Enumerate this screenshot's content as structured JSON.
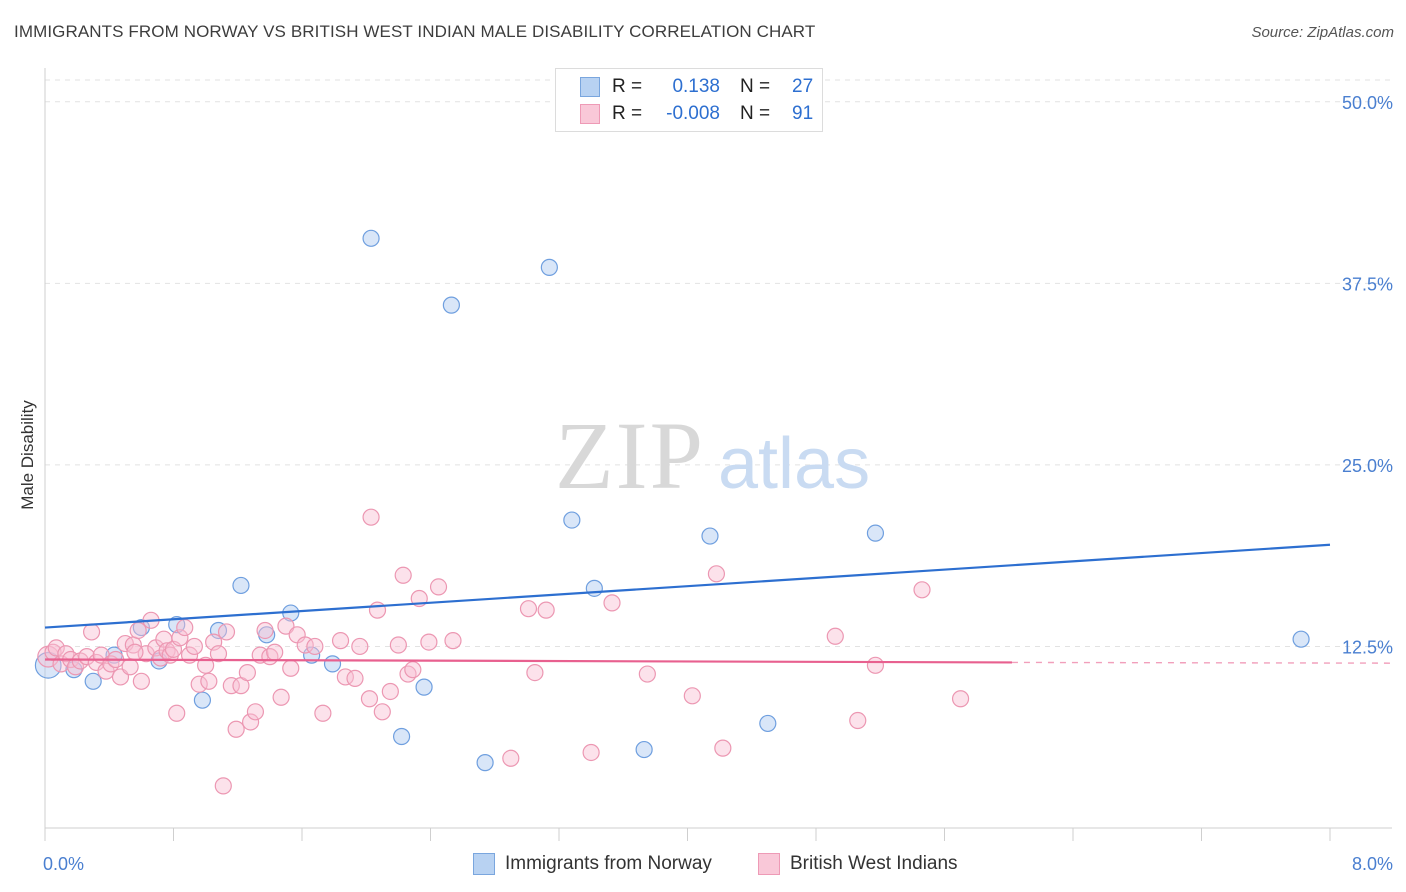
{
  "title": "IMMIGRANTS FROM NORWAY VS BRITISH WEST INDIAN MALE DISABILITY CORRELATION CHART",
  "source": "Source: ZipAtlas.com",
  "watermark": {
    "part1": "ZIP",
    "part2": "atlas"
  },
  "legend": {
    "rows": [
      {
        "r_label": "R =",
        "r_value": "0.138",
        "n_label": "N =",
        "n_value": "27",
        "color": "#7aa6de"
      },
      {
        "r_label": "R =",
        "r_value": "-0.008",
        "n_label": "N =",
        "n_value": "91",
        "color": "#ee9ab6"
      }
    ]
  },
  "bottom_legend": [
    {
      "label": "Immigrants from Norway"
    },
    {
      "label": "British West Indians"
    }
  ],
  "chart_data": {
    "type": "scatter",
    "title": "IMMIGRANTS FROM NORWAY VS BRITISH WEST INDIAN MALE DISABILITY CORRELATION CHART",
    "xlabel": "",
    "ylabel": "Male Disability",
    "xlim": [
      0,
      8
    ],
    "ylim": [
      0,
      51.5
    ],
    "x_tick_labels": [
      "0.0%",
      "8.0%"
    ],
    "y_ticks": [
      12.5,
      25.0,
      37.5,
      50.0
    ],
    "y_tick_labels": [
      "12.5%",
      "25.0%",
      "37.5%",
      "50.0%"
    ],
    "grid": "horizontal dashed",
    "legend_position": "top-center",
    "series": [
      {
        "name": "Immigrants from Norway",
        "color": "#6f9fdf",
        "fill": "rgba(170,200,240,0.45)",
        "trend": {
          "x": [
            0,
            8
          ],
          "y": [
            13.8,
            19.5
          ],
          "color": "#2d6fd0"
        },
        "points": [
          [
            0.02,
            11.2,
            1.6
          ],
          [
            0.18,
            10.9,
            1
          ],
          [
            0.3,
            10.1,
            1
          ],
          [
            0.43,
            11.9,
            1
          ],
          [
            0.6,
            13.8,
            1
          ],
          [
            0.71,
            11.5,
            1
          ],
          [
            0.82,
            14.0,
            1
          ],
          [
            0.98,
            8.8,
            1
          ],
          [
            1.08,
            13.6,
            1
          ],
          [
            1.22,
            16.7,
            1
          ],
          [
            1.38,
            13.3,
            1
          ],
          [
            1.53,
            14.8,
            1
          ],
          [
            1.66,
            11.9,
            1
          ],
          [
            1.79,
            11.3,
            1
          ],
          [
            2.03,
            40.6,
            1
          ],
          [
            2.22,
            6.3,
            1
          ],
          [
            2.36,
            9.7,
            1
          ],
          [
            2.53,
            36.0,
            1
          ],
          [
            2.74,
            4.5,
            1
          ],
          [
            3.14,
            38.6,
            1
          ],
          [
            3.28,
            21.2,
            1
          ],
          [
            3.42,
            16.5,
            1
          ],
          [
            3.73,
            5.4,
            1
          ],
          [
            4.14,
            20.1,
            1
          ],
          [
            4.5,
            7.2,
            1
          ],
          [
            5.17,
            20.3,
            1
          ],
          [
            7.82,
            13.0,
            1
          ]
        ]
      },
      {
        "name": "British West Indians",
        "color": "#ec97b2",
        "fill": "rgba(248,190,210,0.45)",
        "trend": {
          "x": [
            0,
            6.02
          ],
          "y": [
            11.6,
            11.4
          ],
          "color": "#e8608f"
        },
        "trend_dashed": {
          "x": [
            6.02,
            8.4
          ],
          "y": [
            11.4,
            11.35
          ]
        },
        "points": [
          [
            0.02,
            11.8,
            1.3
          ],
          [
            0.05,
            12.1,
            1
          ],
          [
            0.07,
            12.4,
            1
          ],
          [
            0.1,
            11.3,
            1
          ],
          [
            0.13,
            12.0,
            1
          ],
          [
            0.16,
            11.6,
            1
          ],
          [
            0.19,
            11.1,
            1
          ],
          [
            0.22,
            11.5,
            1
          ],
          [
            0.26,
            11.8,
            1
          ],
          [
            0.29,
            13.5,
            1
          ],
          [
            0.32,
            11.4,
            1
          ],
          [
            0.35,
            11.9,
            1
          ],
          [
            0.38,
            10.8,
            1
          ],
          [
            0.41,
            11.3,
            1
          ],
          [
            0.44,
            11.6,
            1
          ],
          [
            0.47,
            10.4,
            1
          ],
          [
            0.5,
            12.7,
            1
          ],
          [
            0.53,
            11.1,
            1
          ],
          [
            0.55,
            12.6,
            1
          ],
          [
            0.58,
            13.6,
            1
          ],
          [
            0.6,
            10.1,
            1
          ],
          [
            0.63,
            12.0,
            1
          ],
          [
            0.66,
            14.3,
            1
          ],
          [
            0.69,
            12.4,
            1
          ],
          [
            0.72,
            11.7,
            1
          ],
          [
            0.74,
            13.0,
            1
          ],
          [
            0.76,
            12.2,
            1
          ],
          [
            0.78,
            11.9,
            1
          ],
          [
            0.8,
            12.3,
            1
          ],
          [
            0.82,
            7.9,
            1
          ],
          [
            0.84,
            13.1,
            1
          ],
          [
            0.87,
            13.8,
            1
          ],
          [
            0.9,
            11.9,
            1
          ],
          [
            0.93,
            12.5,
            1
          ],
          [
            0.96,
            9.9,
            1
          ],
          [
            1.0,
            11.2,
            1
          ],
          [
            1.02,
            10.1,
            1
          ],
          [
            1.05,
            12.8,
            1
          ],
          [
            1.08,
            12.0,
            1
          ],
          [
            1.11,
            2.9,
            1
          ],
          [
            1.13,
            13.5,
            1
          ],
          [
            1.16,
            9.8,
            1
          ],
          [
            1.19,
            6.8,
            1
          ],
          [
            1.22,
            9.8,
            1
          ],
          [
            1.26,
            10.7,
            1
          ],
          [
            1.28,
            7.3,
            1
          ],
          [
            1.31,
            8.0,
            1
          ],
          [
            1.34,
            11.9,
            1
          ],
          [
            1.37,
            13.6,
            1
          ],
          [
            1.4,
            11.8,
            1
          ],
          [
            1.43,
            12.1,
            1
          ],
          [
            1.47,
            9.0,
            1
          ],
          [
            1.5,
            13.9,
            1
          ],
          [
            1.53,
            11.0,
            1
          ],
          [
            1.57,
            13.3,
            1
          ],
          [
            1.62,
            12.6,
            1
          ],
          [
            1.68,
            12.5,
            1
          ],
          [
            1.73,
            7.9,
            1
          ],
          [
            1.84,
            12.9,
            1
          ],
          [
            1.87,
            10.4,
            1
          ],
          [
            1.93,
            10.3,
            1
          ],
          [
            1.96,
            12.5,
            1
          ],
          [
            2.02,
            8.9,
            1
          ],
          [
            2.03,
            21.4,
            1
          ],
          [
            2.07,
            15.0,
            1
          ],
          [
            2.1,
            8.0,
            1
          ],
          [
            2.15,
            9.4,
            1
          ],
          [
            2.2,
            12.6,
            1
          ],
          [
            2.23,
            17.4,
            1
          ],
          [
            2.26,
            10.6,
            1
          ],
          [
            2.29,
            10.9,
            1
          ],
          [
            2.33,
            15.8,
            1
          ],
          [
            2.39,
            12.8,
            1
          ],
          [
            2.45,
            16.6,
            1
          ],
          [
            2.54,
            12.9,
            1
          ],
          [
            2.9,
            4.8,
            1
          ],
          [
            3.01,
            15.1,
            1
          ],
          [
            3.05,
            10.7,
            1
          ],
          [
            3.12,
            15.0,
            1
          ],
          [
            3.4,
            5.2,
            1
          ],
          [
            3.53,
            15.5,
            1
          ],
          [
            3.75,
            10.6,
            1
          ],
          [
            4.03,
            9.1,
            1
          ],
          [
            4.18,
            17.5,
            1
          ],
          [
            4.22,
            5.5,
            1
          ],
          [
            4.92,
            13.2,
            1
          ],
          [
            5.06,
            7.4,
            1
          ],
          [
            5.17,
            11.2,
            1
          ],
          [
            5.46,
            16.4,
            1
          ],
          [
            5.7,
            8.9,
            1
          ],
          [
            0.56,
            12.1,
            1
          ]
        ]
      }
    ]
  }
}
